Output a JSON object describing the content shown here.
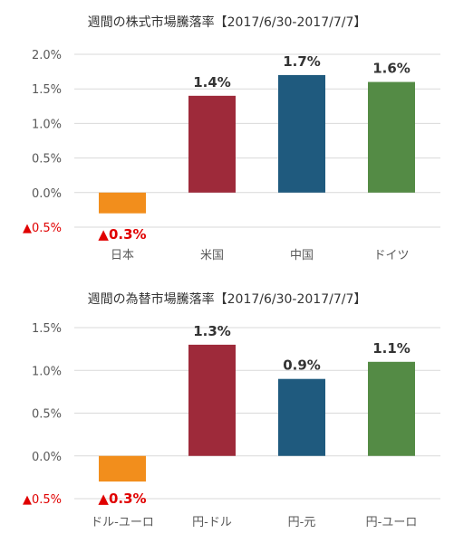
{
  "colors": {
    "orange": "#f28e1c",
    "red": "#9e2a3a",
    "blue": "#1f5a7e",
    "green": "#548b45",
    "negative_text": "#e00000",
    "grid": "#d9d9d9"
  },
  "chart_data": [
    {
      "type": "bar",
      "title": "週間の株式市場騰落率【2017/6/30-2017/7/7】",
      "categories": [
        "日本",
        "米国",
        "中国",
        "ドイツ"
      ],
      "values": [
        -0.3,
        1.4,
        1.7,
        1.6
      ],
      "data_labels": [
        "▲0.3%",
        "1.4%",
        "1.7%",
        "1.6%"
      ],
      "bar_colors": [
        "#f28e1c",
        "#9e2a3a",
        "#1f5a7e",
        "#548b45"
      ],
      "ylim": [
        -0.5,
        2.0
      ],
      "yticks": [
        2.0,
        1.5,
        1.0,
        0.5,
        0.0,
        -0.5
      ],
      "ytick_labels": [
        "2.0%",
        "1.5%",
        "1.0%",
        "0.5%",
        "0.0%",
        "▲0.5%"
      ],
      "grid": true,
      "xlabel": "",
      "ylabel": ""
    },
    {
      "type": "bar",
      "title": "週間の為替市場騰落率【2017/6/30-2017/7/7】",
      "categories": [
        "ドル-ユーロ",
        "円-ドル",
        "円-元",
        "円-ユーロ"
      ],
      "values": [
        -0.3,
        1.3,
        0.9,
        1.1
      ],
      "data_labels": [
        "▲0.3%",
        "1.3%",
        "0.9%",
        "1.1%"
      ],
      "bar_colors": [
        "#f28e1c",
        "#9e2a3a",
        "#1f5a7e",
        "#548b45"
      ],
      "ylim": [
        -0.5,
        1.5
      ],
      "yticks": [
        1.5,
        1.0,
        0.5,
        0.0,
        -0.5
      ],
      "ytick_labels": [
        "1.5%",
        "1.0%",
        "0.5%",
        "0.0%",
        "▲0.5%"
      ],
      "grid": true,
      "xlabel": "",
      "ylabel": ""
    }
  ]
}
